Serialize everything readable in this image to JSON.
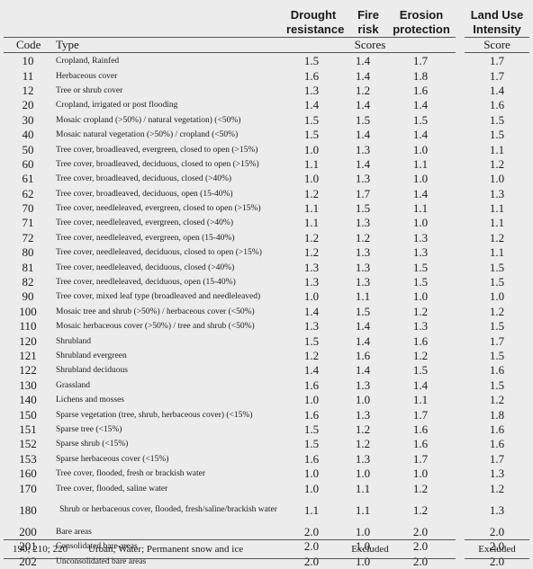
{
  "headers": {
    "drought": "Drought resistance",
    "fire": "Fire risk",
    "erosion": "Erosion protection",
    "landuse": "Land Use Intensity",
    "code": "Code",
    "type": "Type",
    "scores": "Scores",
    "score": "Score"
  },
  "rows": [
    {
      "code": "10",
      "type": "Cropland, Rainfed",
      "drought": "1.5",
      "fire": "1.4",
      "erosion": "1.7",
      "landuse": "1.7"
    },
    {
      "code": "11",
      "type": "Herbaceous cover",
      "drought": "1.6",
      "fire": "1.4",
      "erosion": "1.8",
      "landuse": "1.7"
    },
    {
      "code": "12",
      "type": "Tree or shrub cover",
      "drought": "1.3",
      "fire": "1.2",
      "erosion": "1.6",
      "landuse": "1.4"
    },
    {
      "code": "20",
      "type": "Cropland, irrigated or post flooding",
      "drought": "1.4",
      "fire": "1.4",
      "erosion": "1.4",
      "landuse": "1.6"
    },
    {
      "code": "30",
      "type": "Mosaic cropland (>50%) / natural vegetation) (<50%)",
      "drought": "1.5",
      "fire": "1.5",
      "erosion": "1.5",
      "landuse": "1.5"
    },
    {
      "code": "40",
      "type": "Mosaic natural vegetation (>50%) / cropland (<50%)",
      "drought": "1.5",
      "fire": "1.4",
      "erosion": "1.4",
      "landuse": "1.5"
    },
    {
      "code": "50",
      "type": "Tree cover, broadleaved, evergreen, closed to open (>15%)",
      "drought": "1.0",
      "fire": "1.3",
      "erosion": "1.0",
      "landuse": "1.1"
    },
    {
      "code": "60",
      "type": "Tree cover, broadleaved, deciduous, closed to open (>15%)",
      "drought": "1.1",
      "fire": "1.4",
      "erosion": "1.1",
      "landuse": "1.2"
    },
    {
      "code": "61",
      "type": "Tree cover, broadleaved, deciduous, closed (>40%)",
      "drought": "1.0",
      "fire": "1.3",
      "erosion": "1.0",
      "landuse": "1.0"
    },
    {
      "code": "62",
      "type": "Tree cover, broadleaved, deciduous, open (15-40%)",
      "drought": "1.2",
      "fire": "1.7",
      "erosion": "1.4",
      "landuse": "1.3"
    },
    {
      "code": "70",
      "type": "Tree cover, needleleaved, evergreen, closed to open (>15%)",
      "drought": "1.1",
      "fire": "1.5",
      "erosion": "1.1",
      "landuse": "1.1"
    },
    {
      "code": "71",
      "type": "Tree cover, needleleaved, evergreen, closed (>40%)",
      "drought": "1.1",
      "fire": "1.3",
      "erosion": "1.0",
      "landuse": "1.1"
    },
    {
      "code": "72",
      "type": "Tree cover, needleleaved, evergreen, open (15-40%)",
      "drought": "1.2",
      "fire": "1.2",
      "erosion": "1.3",
      "landuse": "1.2"
    },
    {
      "code": "80",
      "type": "Tree cover, needleleaved, deciduous, closed to open (>15%)",
      "drought": "1.2",
      "fire": "1.3",
      "erosion": "1.3",
      "landuse": "1.1"
    },
    {
      "code": "81",
      "type": "Tree cover, needleleaved, deciduous, closed (>40%)",
      "drought": "1.3",
      "fire": "1.3",
      "erosion": "1.5",
      "landuse": "1.5"
    },
    {
      "code": "82",
      "type": "Tree cover, needleleaved, deciduous, open (15-40%)",
      "drought": "1.3",
      "fire": "1.3",
      "erosion": "1.5",
      "landuse": "1.5"
    },
    {
      "code": "90",
      "type": "Tree cover, mixed leaf type (broadleaved and needleleaved)",
      "drought": "1.0",
      "fire": "1.1",
      "erosion": "1.0",
      "landuse": "1.0"
    },
    {
      "code": "100",
      "type": "Mosaic tree and shrub (>50%) / herbaceous cover (<50%)",
      "drought": "1.4",
      "fire": "1.5",
      "erosion": "1.2",
      "landuse": "1.2"
    },
    {
      "code": "110",
      "type": "Mosaic herbaceous cover (>50%) / tree and shrub (<50%)",
      "drought": "1.3",
      "fire": "1.4",
      "erosion": "1.3",
      "landuse": "1.5"
    },
    {
      "code": "120",
      "type": "Shrubland",
      "drought": "1.5",
      "fire": "1.4",
      "erosion": "1.6",
      "landuse": "1.7"
    },
    {
      "code": "121",
      "type": "Shrubland evergreen",
      "drought": "1.2",
      "fire": "1.6",
      "erosion": "1.2",
      "landuse": "1.5"
    },
    {
      "code": "122",
      "type": "Shrubland deciduous",
      "drought": "1.4",
      "fire": "1.4",
      "erosion": "1.5",
      "landuse": "1.6"
    },
    {
      "code": "130",
      "type": "Grassland",
      "drought": "1.6",
      "fire": "1.3",
      "erosion": "1.4",
      "landuse": "1.5"
    },
    {
      "code": "140",
      "type": "Lichens and mosses",
      "drought": "1.0",
      "fire": "1.0",
      "erosion": "1.1",
      "landuse": "1.2"
    },
    {
      "code": "150",
      "type": "Sparse vegetation (tree, shrub, herbaceous cover) (<15%)",
      "drought": "1.6",
      "fire": "1.3",
      "erosion": "1.7",
      "landuse": "1.8"
    },
    {
      "code": "151",
      "type": "Sparse tree (<15%)",
      "drought": "1.5",
      "fire": "1.2",
      "erosion": "1.6",
      "landuse": "1.6"
    },
    {
      "code": "152",
      "type": "Sparse shrub (<15%)",
      "drought": "1.5",
      "fire": "1.2",
      "erosion": "1.6",
      "landuse": "1.6"
    },
    {
      "code": "153",
      "type": "Sparse herbaceous cover (<15%)",
      "drought": "1.6",
      "fire": "1.3",
      "erosion": "1.7",
      "landuse": "1.7"
    },
    {
      "code": "160",
      "type": "Tree cover, flooded, fresh or brackish water",
      "drought": "1.0",
      "fire": "1.0",
      "erosion": "1.0",
      "landuse": "1.3"
    },
    {
      "code": "170",
      "type": "Tree cover, flooded, saline water",
      "drought": "1.0",
      "fire": "1.1",
      "erosion": "1.2",
      "landuse": "1.2"
    },
    {
      "code": "180",
      "type": "Shrub or herbaceous cover, flooded, fresh/saline/brackish water",
      "drought": "1.1",
      "fire": "1.1",
      "erosion": "1.2",
      "landuse": "1.3",
      "tall": true
    },
    {
      "code": "200",
      "type": "Bare areas",
      "drought": "2.0",
      "fire": "1.0",
      "erosion": "2.0",
      "landuse": "2.0"
    },
    {
      "code": "201",
      "type": "Consolidated bare areas",
      "drought": "2.0",
      "fire": "1.0",
      "erosion": "2.0",
      "landuse": "2.0"
    },
    {
      "code": "202",
      "type": "Unconsolidated bare areas",
      "drought": "2.0",
      "fire": "1.0",
      "erosion": "2.0",
      "landuse": "2.0"
    }
  ],
  "footer": {
    "codes": "190; 210; 220",
    "type": "Urban; Water; Permanent snow and ice",
    "scores": "Excluded",
    "score": "Excluded"
  }
}
